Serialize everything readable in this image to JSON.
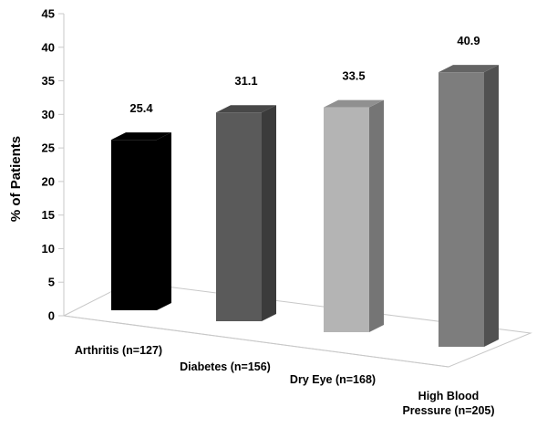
{
  "chart_data": {
    "type": "bar",
    "categories": [
      [
        "Arthritis (n=127)"
      ],
      [
        "Diabetes (n=156)"
      ],
      [
        "Dry Eye (n=168)"
      ],
      [
        "High Blood",
        "Pressure (n=205)"
      ]
    ],
    "values": [
      25.4,
      31.1,
      33.5,
      40.9
    ],
    "value_labels": [
      "25.4",
      "31.1",
      "33.5",
      "40.9"
    ],
    "bar_colors": [
      "#000000",
      "#5a5a5a",
      "#b4b4b4",
      "#7d7d7d"
    ],
    "ylabel": "% of Patients",
    "ylim": [
      0,
      45
    ],
    "yticks": [
      "0",
      "5",
      "10",
      "15",
      "20",
      "25",
      "30",
      "35",
      "40",
      "45"
    ],
    "grid": false,
    "legend": "none"
  }
}
